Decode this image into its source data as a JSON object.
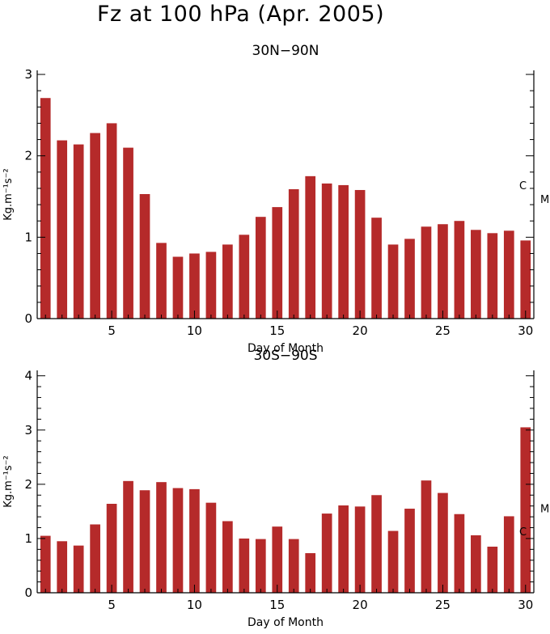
{
  "title": "Fz at 100 hPa (Apr. 2005)",
  "colors": {
    "bar": "#b52a2a"
  },
  "chart_data": [
    {
      "type": "bar",
      "title": "30N−90N",
      "xlabel": "Day of Month",
      "ylabel": "Kg.m⁻¹s⁻²",
      "x": [
        1,
        2,
        3,
        4,
        5,
        6,
        7,
        8,
        9,
        10,
        11,
        12,
        13,
        14,
        15,
        16,
        17,
        18,
        19,
        20,
        21,
        22,
        23,
        24,
        25,
        26,
        27,
        28,
        29,
        30
      ],
      "values": [
        2.71,
        2.19,
        2.14,
        2.28,
        2.4,
        2.1,
        1.53,
        0.93,
        0.76,
        0.8,
        0.82,
        0.91,
        1.03,
        1.25,
        1.37,
        1.59,
        1.75,
        1.66,
        1.64,
        1.58,
        1.24,
        0.91,
        0.98,
        1.13,
        1.16,
        1.2,
        1.09,
        1.05,
        1.08,
        0.96
      ],
      "xlim": [
        0.5,
        30.5
      ],
      "ylim": [
        0,
        3.05
      ],
      "xticks": [
        5,
        10,
        15,
        20,
        25,
        30
      ],
      "yticks": [
        0,
        1,
        2,
        3
      ],
      "right_axis_labels": [
        {
          "text": "C",
          "value": 1.64
        },
        {
          "text": "M",
          "value": 1.47
        }
      ]
    },
    {
      "type": "bar",
      "title": "30S−90S",
      "xlabel": "Day of Month",
      "ylabel": "Kg.m⁻¹s⁻²",
      "x": [
        1,
        2,
        3,
        4,
        5,
        6,
        7,
        8,
        9,
        10,
        11,
        12,
        13,
        14,
        15,
        16,
        17,
        18,
        19,
        20,
        21,
        22,
        23,
        24,
        25,
        26,
        27,
        28,
        29,
        30
      ],
      "values": [
        1.05,
        0.95,
        0.87,
        1.26,
        1.64,
        2.06,
        1.89,
        2.04,
        1.93,
        1.91,
        1.66,
        1.32,
        1.0,
        0.99,
        1.22,
        0.99,
        0.73,
        1.46,
        1.61,
        1.59,
        1.8,
        1.14,
        1.55,
        2.07,
        1.84,
        1.45,
        1.06,
        0.85,
        1.41,
        3.05
      ],
      "xlim": [
        0.5,
        30.5
      ],
      "ylim": [
        0,
        4.1
      ],
      "xticks": [
        5,
        10,
        15,
        20,
        25,
        30
      ],
      "yticks": [
        0,
        1,
        2,
        3,
        4
      ],
      "right_axis_labels": [
        {
          "text": "C",
          "value": 1.13
        },
        {
          "text": "M",
          "value": 1.56
        }
      ]
    }
  ]
}
